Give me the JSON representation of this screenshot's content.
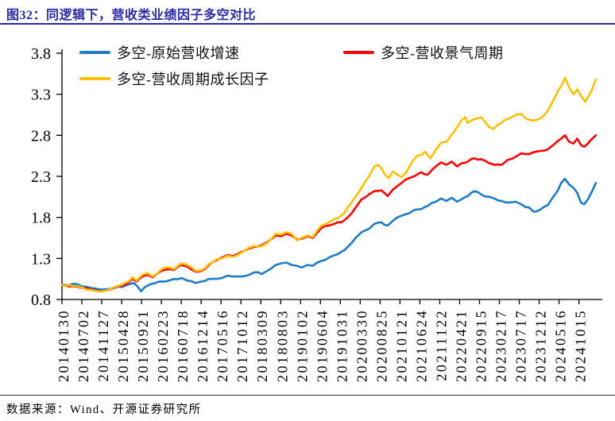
{
  "header": {
    "title": "图32：同逻辑下，营收类业绩因子多空对比"
  },
  "footer": {
    "source": "数据来源：Wind、开源证券研究所"
  },
  "colors": {
    "title": "#2b2ba3",
    "rule": "#2b2ba3",
    "axis": "#000000",
    "blue": "#1f7bc4",
    "red": "#ff0000",
    "yellow": "#ffc000"
  },
  "chart_data": {
    "type": "line",
    "title": "图32：同逻辑下，营收类业绩因子多空对比",
    "legend_position": "top",
    "grid": false,
    "ylim": [
      0.8,
      3.8
    ],
    "y_ticks": [
      0.8,
      1.3,
      1.8,
      2.3,
      2.8,
      3.3,
      3.8
    ],
    "x_tick_labels": [
      "20140130",
      "20140702",
      "20141127",
      "20150428",
      "20150921",
      "20160223",
      "20160718",
      "20161214",
      "20170516",
      "20171012",
      "20180309",
      "20180803",
      "20190102",
      "20190604",
      "20191031",
      "20200330",
      "20200825",
      "20210121",
      "20210624",
      "20211122",
      "20220421",
      "20220915",
      "20230217",
      "20230717",
      "20231212",
      "20240516",
      "20241015"
    ],
    "noise_amplitude": 0.012,
    "noise_seed": 7,
    "series": [
      {
        "name": "多空-原始营收增速",
        "color": "#1f7bc4",
        "points": [
          [
            0.0,
            0.98
          ],
          [
            0.02,
            0.99
          ],
          [
            0.037,
            0.96
          ],
          [
            0.055,
            0.94
          ],
          [
            0.075,
            0.92
          ],
          [
            0.09,
            0.93
          ],
          [
            0.105,
            0.96
          ],
          [
            0.112,
            0.95
          ],
          [
            0.125,
            0.985
          ],
          [
            0.135,
            1.0
          ],
          [
            0.142,
            0.955
          ],
          [
            0.148,
            0.9
          ],
          [
            0.155,
            0.95
          ],
          [
            0.165,
            0.985
          ],
          [
            0.175,
            1.0
          ],
          [
            0.187,
            1.02
          ],
          [
            0.2,
            1.03
          ],
          [
            0.21,
            1.05
          ],
          [
            0.224,
            1.06
          ],
          [
            0.235,
            1.03
          ],
          [
            0.25,
            1.0
          ],
          [
            0.262,
            1.02
          ],
          [
            0.275,
            1.05
          ],
          [
            0.299,
            1.06
          ],
          [
            0.31,
            1.09
          ],
          [
            0.32,
            1.08
          ],
          [
            0.336,
            1.08
          ],
          [
            0.35,
            1.1
          ],
          [
            0.36,
            1.13
          ],
          [
            0.374,
            1.11
          ],
          [
            0.385,
            1.15
          ],
          [
            0.4,
            1.22
          ],
          [
            0.411,
            1.24
          ],
          [
            0.42,
            1.25
          ],
          [
            0.43,
            1.22
          ],
          [
            0.44,
            1.21
          ],
          [
            0.449,
            1.19
          ],
          [
            0.46,
            1.22
          ],
          [
            0.47,
            1.21
          ],
          [
            0.486,
            1.27
          ],
          [
            0.5,
            1.31
          ],
          [
            0.51,
            1.34
          ],
          [
            0.523,
            1.38
          ],
          [
            0.535,
            1.44
          ],
          [
            0.55,
            1.55
          ],
          [
            0.561,
            1.62
          ],
          [
            0.575,
            1.66
          ],
          [
            0.585,
            1.72
          ],
          [
            0.598,
            1.74
          ],
          [
            0.61,
            1.7
          ],
          [
            0.62,
            1.76
          ],
          [
            0.636,
            1.82
          ],
          [
            0.65,
            1.85
          ],
          [
            0.66,
            1.89
          ],
          [
            0.673,
            1.9
          ],
          [
            0.685,
            1.94
          ],
          [
            0.7,
            1.99
          ],
          [
            0.71,
            2.03
          ],
          [
            0.72,
            2.0
          ],
          [
            0.73,
            2.04
          ],
          [
            0.74,
            1.99
          ],
          [
            0.748,
            2.02
          ],
          [
            0.76,
            2.06
          ],
          [
            0.773,
            2.12
          ],
          [
            0.785,
            2.08
          ],
          [
            0.8,
            2.05
          ],
          [
            0.81,
            2.03
          ],
          [
            0.823,
            2.0
          ],
          [
            0.835,
            1.98
          ],
          [
            0.85,
            1.99
          ],
          [
            0.86,
            1.96
          ],
          [
            0.875,
            1.92
          ],
          [
            0.883,
            1.87
          ],
          [
            0.897,
            1.9
          ],
          [
            0.91,
            1.95
          ],
          [
            0.92,
            2.05
          ],
          [
            0.928,
            2.12
          ],
          [
            0.935,
            2.22
          ],
          [
            0.942,
            2.27
          ],
          [
            0.95,
            2.2
          ],
          [
            0.958,
            2.16
          ],
          [
            0.965,
            2.1
          ],
          [
            0.972,
            1.98
          ],
          [
            0.978,
            1.96
          ],
          [
            0.985,
            2.02
          ],
          [
            1.0,
            2.22
          ]
        ]
      },
      {
        "name": "多空-营收景气周期",
        "color": "#ff0000",
        "points": [
          [
            0.0,
            0.97
          ],
          [
            0.02,
            0.96
          ],
          [
            0.037,
            0.94
          ],
          [
            0.055,
            0.92
          ],
          [
            0.075,
            0.9
          ],
          [
            0.09,
            0.92
          ],
          [
            0.1,
            0.95
          ],
          [
            0.112,
            0.97
          ],
          [
            0.125,
            1.01
          ],
          [
            0.132,
            1.05
          ],
          [
            0.14,
            1.02
          ],
          [
            0.15,
            1.08
          ],
          [
            0.16,
            1.1
          ],
          [
            0.17,
            1.07
          ],
          [
            0.187,
            1.15
          ],
          [
            0.2,
            1.17
          ],
          [
            0.21,
            1.16
          ],
          [
            0.224,
            1.22
          ],
          [
            0.235,
            1.2
          ],
          [
            0.25,
            1.14
          ],
          [
            0.262,
            1.15
          ],
          [
            0.275,
            1.22
          ],
          [
            0.29,
            1.28
          ],
          [
            0.299,
            1.31
          ],
          [
            0.31,
            1.34
          ],
          [
            0.32,
            1.33
          ],
          [
            0.336,
            1.38
          ],
          [
            0.35,
            1.42
          ],
          [
            0.36,
            1.44
          ],
          [
            0.374,
            1.46
          ],
          [
            0.385,
            1.5
          ],
          [
            0.395,
            1.55
          ],
          [
            0.4,
            1.58
          ],
          [
            0.411,
            1.57
          ],
          [
            0.42,
            1.6
          ],
          [
            0.43,
            1.58
          ],
          [
            0.44,
            1.53
          ],
          [
            0.449,
            1.54
          ],
          [
            0.46,
            1.57
          ],
          [
            0.47,
            1.55
          ],
          [
            0.486,
            1.67
          ],
          [
            0.5,
            1.7
          ],
          [
            0.51,
            1.72
          ],
          [
            0.523,
            1.74
          ],
          [
            0.535,
            1.8
          ],
          [
            0.55,
            1.92
          ],
          [
            0.561,
            2.02
          ],
          [
            0.575,
            2.08
          ],
          [
            0.585,
            2.12
          ],
          [
            0.598,
            2.13
          ],
          [
            0.61,
            2.06
          ],
          [
            0.62,
            2.14
          ],
          [
            0.636,
            2.22
          ],
          [
            0.65,
            2.28
          ],
          [
            0.66,
            2.3
          ],
          [
            0.673,
            2.35
          ],
          [
            0.685,
            2.32
          ],
          [
            0.7,
            2.42
          ],
          [
            0.71,
            2.47
          ],
          [
            0.72,
            2.44
          ],
          [
            0.73,
            2.48
          ],
          [
            0.74,
            2.42
          ],
          [
            0.748,
            2.46
          ],
          [
            0.76,
            2.48
          ],
          [
            0.773,
            2.52
          ],
          [
            0.785,
            2.51
          ],
          [
            0.8,
            2.46
          ],
          [
            0.81,
            2.44
          ],
          [
            0.823,
            2.44
          ],
          [
            0.835,
            2.5
          ],
          [
            0.85,
            2.54
          ],
          [
            0.86,
            2.58
          ],
          [
            0.875,
            2.57
          ],
          [
            0.897,
            2.61
          ],
          [
            0.91,
            2.63
          ],
          [
            0.92,
            2.68
          ],
          [
            0.935,
            2.76
          ],
          [
            0.942,
            2.8
          ],
          [
            0.95,
            2.72
          ],
          [
            0.958,
            2.7
          ],
          [
            0.965,
            2.76
          ],
          [
            0.972,
            2.68
          ],
          [
            0.978,
            2.66
          ],
          [
            0.99,
            2.74
          ],
          [
            1.0,
            2.8
          ]
        ]
      },
      {
        "name": "多空-营收周期成长因子",
        "color": "#ffc000",
        "points": [
          [
            0.0,
            0.975
          ],
          [
            0.02,
            0.965
          ],
          [
            0.037,
            0.945
          ],
          [
            0.055,
            0.915
          ],
          [
            0.075,
            0.9
          ],
          [
            0.09,
            0.925
          ],
          [
            0.1,
            0.955
          ],
          [
            0.112,
            0.98
          ],
          [
            0.125,
            1.02
          ],
          [
            0.132,
            1.07
          ],
          [
            0.14,
            1.03
          ],
          [
            0.15,
            1.1
          ],
          [
            0.16,
            1.12
          ],
          [
            0.17,
            1.08
          ],
          [
            0.187,
            1.17
          ],
          [
            0.2,
            1.19
          ],
          [
            0.21,
            1.17
          ],
          [
            0.224,
            1.24
          ],
          [
            0.235,
            1.22
          ],
          [
            0.25,
            1.15
          ],
          [
            0.262,
            1.16
          ],
          [
            0.275,
            1.23
          ],
          [
            0.29,
            1.29
          ],
          [
            0.299,
            1.3
          ],
          [
            0.31,
            1.33
          ],
          [
            0.32,
            1.32
          ],
          [
            0.336,
            1.37
          ],
          [
            0.35,
            1.43
          ],
          [
            0.36,
            1.45
          ],
          [
            0.374,
            1.45
          ],
          [
            0.385,
            1.49
          ],
          [
            0.395,
            1.56
          ],
          [
            0.4,
            1.6
          ],
          [
            0.411,
            1.59
          ],
          [
            0.42,
            1.62
          ],
          [
            0.43,
            1.6
          ],
          [
            0.44,
            1.52
          ],
          [
            0.449,
            1.55
          ],
          [
            0.46,
            1.58
          ],
          [
            0.47,
            1.56
          ],
          [
            0.486,
            1.7
          ],
          [
            0.5,
            1.74
          ],
          [
            0.51,
            1.78
          ],
          [
            0.523,
            1.82
          ],
          [
            0.535,
            1.92
          ],
          [
            0.55,
            2.05
          ],
          [
            0.561,
            2.16
          ],
          [
            0.575,
            2.3
          ],
          [
            0.585,
            2.42
          ],
          [
            0.592,
            2.44
          ],
          [
            0.598,
            2.4
          ],
          [
            0.605,
            2.32
          ],
          [
            0.612,
            2.28
          ],
          [
            0.62,
            2.36
          ],
          [
            0.628,
            2.32
          ],
          [
            0.636,
            2.29
          ],
          [
            0.645,
            2.35
          ],
          [
            0.655,
            2.47
          ],
          [
            0.665,
            2.55
          ],
          [
            0.673,
            2.56
          ],
          [
            0.68,
            2.6
          ],
          [
            0.69,
            2.52
          ],
          [
            0.7,
            2.62
          ],
          [
            0.71,
            2.71
          ],
          [
            0.72,
            2.72
          ],
          [
            0.727,
            2.78
          ],
          [
            0.735,
            2.85
          ],
          [
            0.748,
            2.98
          ],
          [
            0.755,
            3.02
          ],
          [
            0.76,
            2.95
          ],
          [
            0.773,
            3.0
          ],
          [
            0.785,
            3.02
          ],
          [
            0.793,
            2.96
          ],
          [
            0.8,
            2.9
          ],
          [
            0.808,
            2.88
          ],
          [
            0.823,
            2.95
          ],
          [
            0.835,
            3.0
          ],
          [
            0.85,
            3.05
          ],
          [
            0.86,
            3.06
          ],
          [
            0.87,
            3.0
          ],
          [
            0.88,
            2.98
          ],
          [
            0.897,
            3.01
          ],
          [
            0.91,
            3.1
          ],
          [
            0.92,
            3.22
          ],
          [
            0.928,
            3.33
          ],
          [
            0.935,
            3.4
          ],
          [
            0.942,
            3.5
          ],
          [
            0.95,
            3.38
          ],
          [
            0.958,
            3.3
          ],
          [
            0.965,
            3.36
          ],
          [
            0.972,
            3.28
          ],
          [
            0.98,
            3.21
          ],
          [
            0.99,
            3.32
          ],
          [
            1.0,
            3.48
          ]
        ]
      }
    ]
  }
}
